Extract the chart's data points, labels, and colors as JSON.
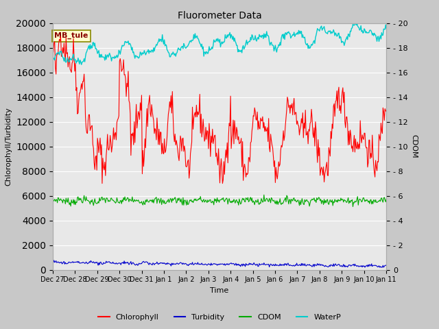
{
  "title": "Fluorometer Data",
  "xlabel": "Time",
  "ylabel_left": "Chlorophyll/Turbidity",
  "ylabel_right": "CDOM",
  "annotation": "MB_tule",
  "x_tick_labels": [
    "Dec 27",
    "Dec 28",
    "Dec 29",
    "Dec 30",
    "Dec 31",
    "Jan 1",
    "Jan 2",
    "Jan 3",
    "Jan 4",
    "Jan 5",
    "Jan 6",
    "Jan 7",
    "Jan 8",
    "Jan 9",
    "Jan 10",
    "Jan 11"
  ],
  "ylim_left": [
    0,
    20000
  ],
  "ylim_right": [
    0,
    20
  ],
  "yticks_left": [
    0,
    2000,
    4000,
    6000,
    8000,
    10000,
    12000,
    14000,
    16000,
    18000,
    20000
  ],
  "yticks_right": [
    0,
    2,
    4,
    6,
    8,
    10,
    12,
    14,
    16,
    18,
    20
  ],
  "fig_bg_color": "#c8c8c8",
  "plot_bg_color": "#e8e8e8",
  "chlorophyll_color": "#ff0000",
  "turbidity_color": "#0000cc",
  "cdom_color": "#00aa00",
  "waterp_color": "#00cccc",
  "legend_colors": [
    "#ff0000",
    "#0000cc",
    "#00aa00",
    "#00cccc"
  ],
  "legend_labels": [
    "Chlorophyll",
    "Turbidity",
    "CDOM",
    "WaterP"
  ],
  "annotation_text_color": "#880000",
  "annotation_bg": "#ffffcc",
  "annotation_edge": "#888800"
}
